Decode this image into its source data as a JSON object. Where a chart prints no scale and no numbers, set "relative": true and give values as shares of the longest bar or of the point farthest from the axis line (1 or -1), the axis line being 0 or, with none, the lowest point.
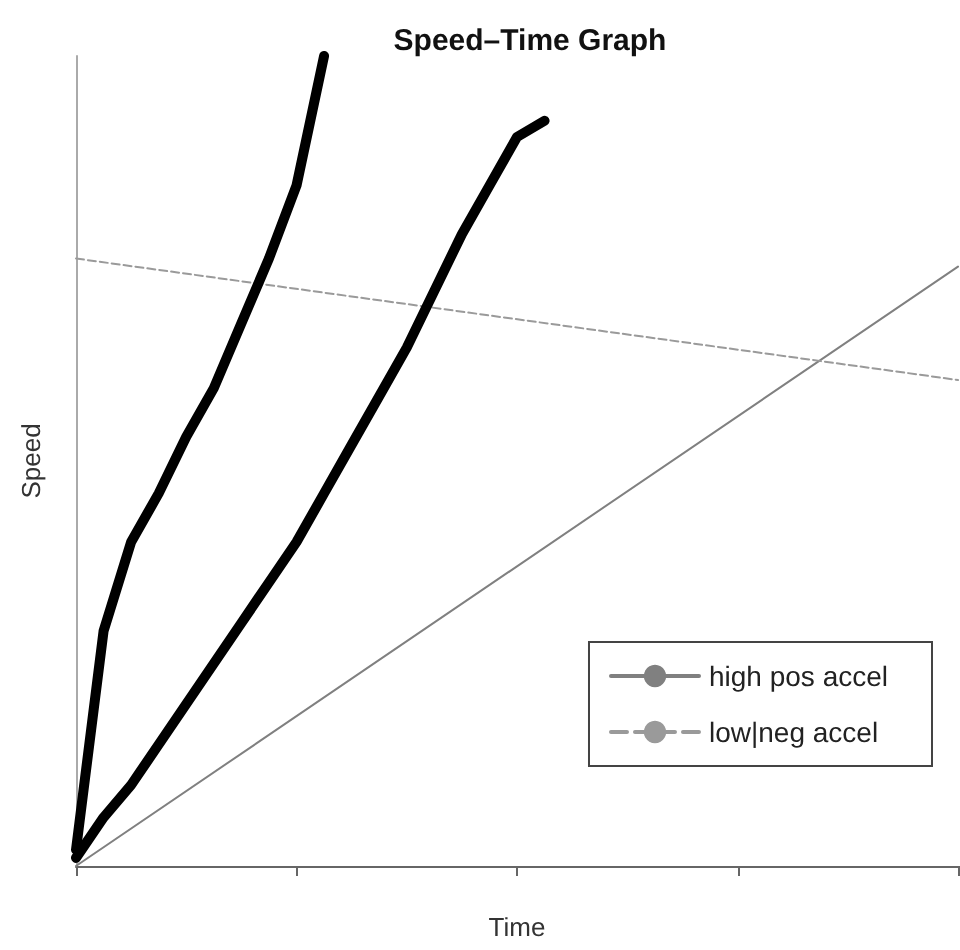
{
  "chart_data": {
    "type": "line",
    "title": "Speed–Time Graph",
    "xlabel": "Time",
    "ylabel": "Speed",
    "relative": true,
    "grid": false,
    "legend": "bottom right",
    "marker": "none",
    "tick_labels": false,
    "categories": [
      null,
      null,
      null,
      null,
      null,
      null,
      null,
      null,
      null,
      null,
      null,
      null,
      null,
      null,
      null,
      null,
      null,
      null,
      null,
      null,
      null,
      null,
      null,
      null,
      null,
      null,
      null,
      null,
      null,
      null,
      null,
      null,
      null
    ],
    "series": [
      {
        "name": "high pos accel",
        "color": "#808080",
        "line_style": "solid",
        "values": [
          0,
          null,
          null,
          null,
          null,
          null,
          null,
          null,
          null,
          null,
          null,
          null,
          null,
          null,
          null,
          null,
          null,
          null,
          null,
          null,
          null,
          null,
          null,
          null,
          null,
          null,
          null,
          null,
          null,
          null,
          null,
          null,
          0.74
        ]
      },
      {
        "name": "low|neg accel",
        "color": "#9a9a9a",
        "line_style": "dashed",
        "values": [
          0.75,
          null,
          null,
          null,
          null,
          null,
          null,
          null,
          null,
          null,
          null,
          null,
          null,
          null,
          null,
          null,
          null,
          null,
          null,
          null,
          null,
          null,
          null,
          null,
          null,
          null,
          null,
          null,
          null,
          null,
          null,
          null,
          0.6
        ]
      },
      {
        "color": "#000000",
        "line_style": "solid",
        "values": [
          0.02,
          0.29,
          0.4,
          0.46,
          0.53,
          0.59,
          0.67,
          0.75,
          0.84,
          1,
          null,
          null,
          null,
          null,
          null,
          null,
          null,
          null,
          null,
          null,
          null,
          null,
          null,
          null,
          null,
          null,
          null,
          null,
          null,
          null,
          null,
          null,
          null
        ]
      },
      {
        "color": "#000000",
        "line_style": "solid",
        "values": [
          0.01,
          0.06,
          0.1,
          0.15,
          0.2,
          0.25,
          0.3,
          0.35,
          0.4,
          0.46,
          0.52,
          0.58,
          0.64,
          0.71,
          0.78,
          0.84,
          0.9,
          0.92,
          null,
          null,
          null,
          null,
          null,
          null,
          null,
          null,
          null,
          null,
          null,
          null,
          null,
          null,
          null
        ]
      }
    ]
  }
}
